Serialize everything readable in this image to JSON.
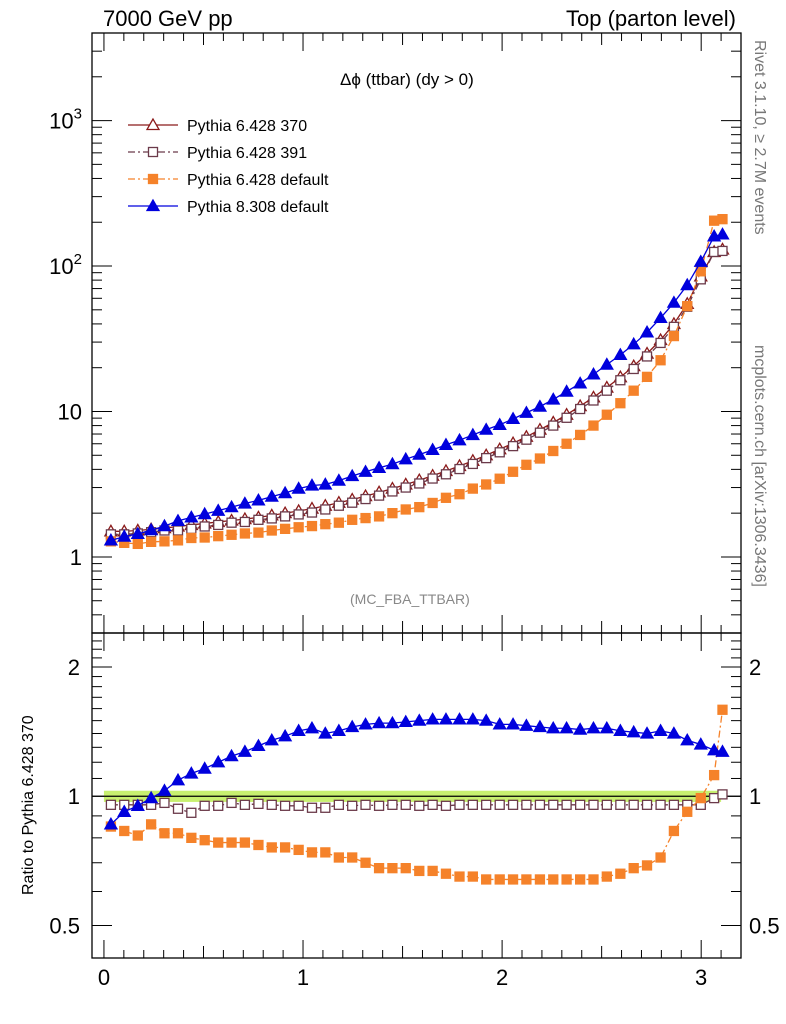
{
  "header": {
    "energy": "7000 GeV pp",
    "process": "Top (parton level)"
  },
  "side_labels": {
    "rivet": "Rivet 3.1.10, ≥ 2.7M events",
    "mcplots": "mcplots.cern.ch [arXiv:1306.3436]"
  },
  "analysis_id": "(MC_FBA_TTBAR)",
  "chart_data": [
    {
      "type": "line",
      "title": "Δϕ (ttbar) (dy > 0)",
      "yscale": "log",
      "xlim": [
        -0.06,
        3.2
      ],
      "ylim": [
        0.3,
        4000
      ],
      "ytick_labels": [
        "1",
        "10",
        "10²",
        "10³"
      ],
      "yticks": [
        1,
        10,
        100,
        1000
      ],
      "legend_position": "top-left",
      "x": [
        0.035,
        0.102,
        0.17,
        0.237,
        0.304,
        0.372,
        0.439,
        0.506,
        0.574,
        0.641,
        0.708,
        0.776,
        0.843,
        0.91,
        0.978,
        1.045,
        1.112,
        1.18,
        1.247,
        1.314,
        1.382,
        1.449,
        1.516,
        1.584,
        1.651,
        1.718,
        1.786,
        1.853,
        1.92,
        1.988,
        2.055,
        2.122,
        2.19,
        2.257,
        2.324,
        2.392,
        2.459,
        2.526,
        2.594,
        2.661,
        2.728,
        2.796,
        2.863,
        2.93,
        2.998,
        3.065,
        3.107
      ],
      "series": [
        {
          "name": "Pythia 6.428 370",
          "color": "#8b1a1a",
          "marker": "open-triangle",
          "line": "solid",
          "values": [
            1.5,
            1.5,
            1.52,
            1.55,
            1.58,
            1.62,
            1.66,
            1.7,
            1.74,
            1.78,
            1.82,
            1.87,
            1.93,
            2.0,
            2.07,
            2.15,
            2.25,
            2.36,
            2.48,
            2.62,
            2.78,
            2.95,
            3.15,
            3.37,
            3.62,
            3.9,
            4.22,
            4.58,
            5.0,
            5.5,
            6.05,
            6.7,
            7.5,
            8.4,
            9.5,
            10.9,
            12.5,
            14.6,
            17.2,
            20.5,
            25.0,
            31.0,
            40.0,
            55.0,
            85.0,
            125.0,
            130.0
          ]
        },
        {
          "name": "Pythia 6.428 391",
          "color": "#6b3a4a",
          "marker": "open-square",
          "line": "dash-dot",
          "values": [
            1.43,
            1.43,
            1.45,
            1.48,
            1.52,
            1.52,
            1.56,
            1.62,
            1.66,
            1.72,
            1.74,
            1.8,
            1.84,
            1.9,
            1.96,
            2.02,
            2.12,
            2.25,
            2.36,
            2.5,
            2.64,
            2.82,
            3.0,
            3.2,
            3.46,
            3.7,
            4.02,
            4.36,
            4.78,
            5.24,
            5.78,
            6.4,
            7.15,
            8.0,
            9.05,
            10.4,
            11.9,
            13.9,
            16.4,
            19.6,
            23.9,
            29.6,
            38.2,
            52.5,
            81.0,
            125.0,
            127.0
          ]
        },
        {
          "name": "Pythia 6.428 default",
          "color": "#f5822a",
          "marker": "filled-square",
          "line": "dash-dot",
          "values": [
            1.28,
            1.25,
            1.23,
            1.27,
            1.28,
            1.3,
            1.35,
            1.36,
            1.39,
            1.42,
            1.45,
            1.47,
            1.52,
            1.56,
            1.6,
            1.63,
            1.68,
            1.72,
            1.8,
            1.85,
            1.9,
            2.0,
            2.12,
            2.2,
            2.35,
            2.55,
            2.7,
            2.95,
            3.15,
            3.45,
            3.85,
            4.3,
            4.75,
            5.35,
            6.0,
            6.9,
            8.0,
            9.5,
            11.4,
            13.9,
            17.3,
            22.5,
            33.0,
            53.0,
            92.0,
            205.0,
            210.0
          ]
        },
        {
          "name": "Pythia 8.308 default",
          "color": "#0000dd",
          "marker": "filled-triangle",
          "line": "solid",
          "values": [
            1.3,
            1.38,
            1.44,
            1.53,
            1.63,
            1.77,
            1.87,
            1.97,
            2.08,
            2.2,
            2.33,
            2.45,
            2.6,
            2.75,
            2.95,
            3.1,
            3.15,
            3.35,
            3.6,
            3.85,
            4.1,
            4.35,
            4.7,
            5.05,
            5.45,
            5.9,
            6.35,
            6.9,
            7.5,
            8.1,
            8.9,
            9.8,
            10.8,
            12.1,
            13.7,
            15.6,
            18.0,
            21.0,
            24.5,
            29.0,
            35.0,
            44.0,
            56.0,
            74.0,
            107.0,
            160.0,
            165.0
          ]
        }
      ]
    },
    {
      "type": "line",
      "title": "",
      "ylabel": "Ratio to Pythia 6.428 370",
      "xlabel": "",
      "yscale": "log",
      "xlim": [
        -0.06,
        3.2
      ],
      "ylim": [
        0.42,
        2.4
      ],
      "xticks": [
        0,
        1,
        2,
        3
      ],
      "xtick_labels": [
        "0",
        "1",
        "2",
        "3"
      ],
      "yticks": [
        0.5,
        1,
        2
      ],
      "ytick_labels": [
        "0.5",
        "1",
        "2"
      ],
      "reference_band": [
        0.97,
        1.03
      ],
      "x": [
        0.035,
        0.102,
        0.17,
        0.237,
        0.304,
        0.372,
        0.439,
        0.506,
        0.574,
        0.641,
        0.708,
        0.776,
        0.843,
        0.91,
        0.978,
        1.045,
        1.112,
        1.18,
        1.247,
        1.314,
        1.382,
        1.449,
        1.516,
        1.584,
        1.651,
        1.718,
        1.786,
        1.853,
        1.92,
        1.988,
        2.055,
        2.122,
        2.19,
        2.257,
        2.324,
        2.392,
        2.459,
        2.526,
        2.594,
        2.661,
        2.728,
        2.796,
        2.863,
        2.93,
        2.998,
        3.065,
        3.107
      ],
      "series": [
        {
          "name": "Pythia 6.428 391",
          "color": "#6b3a4a",
          "marker": "open-square",
          "line": "dash-dot",
          "values": [
            0.955,
            0.955,
            0.955,
            0.955,
            0.965,
            0.935,
            0.915,
            0.95,
            0.95,
            0.965,
            0.955,
            0.96,
            0.955,
            0.95,
            0.95,
            0.94,
            0.94,
            0.955,
            0.95,
            0.955,
            0.95,
            0.955,
            0.955,
            0.95,
            0.955,
            0.95,
            0.955,
            0.955,
            0.955,
            0.955,
            0.955,
            0.955,
            0.955,
            0.955,
            0.955,
            0.955,
            0.955,
            0.955,
            0.955,
            0.955,
            0.955,
            0.955,
            0.955,
            0.955,
            0.955,
            0.99,
            1.01
          ]
        },
        {
          "name": "Pythia 6.428 default",
          "color": "#f5822a",
          "marker": "filled-square",
          "line": "dash-dot",
          "values": [
            0.85,
            0.83,
            0.81,
            0.86,
            0.82,
            0.82,
            0.8,
            0.79,
            0.78,
            0.78,
            0.78,
            0.77,
            0.76,
            0.76,
            0.75,
            0.74,
            0.74,
            0.72,
            0.72,
            0.7,
            0.68,
            0.68,
            0.68,
            0.67,
            0.67,
            0.66,
            0.65,
            0.65,
            0.64,
            0.64,
            0.64,
            0.64,
            0.64,
            0.64,
            0.64,
            0.64,
            0.64,
            0.65,
            0.66,
            0.68,
            0.69,
            0.72,
            0.83,
            0.92,
            0.99,
            1.12,
            1.59
          ]
        },
        {
          "name": "Pythia 8.308 default",
          "color": "#0000dd",
          "marker": "filled-triangle",
          "line": "solid",
          "values": [
            0.86,
            0.92,
            0.95,
            0.99,
            1.03,
            1.09,
            1.13,
            1.16,
            1.2,
            1.24,
            1.27,
            1.31,
            1.35,
            1.38,
            1.42,
            1.44,
            1.4,
            1.42,
            1.45,
            1.47,
            1.48,
            1.48,
            1.49,
            1.5,
            1.51,
            1.51,
            1.51,
            1.51,
            1.5,
            1.47,
            1.47,
            1.46,
            1.45,
            1.44,
            1.44,
            1.43,
            1.44,
            1.44,
            1.42,
            1.41,
            1.4,
            1.42,
            1.4,
            1.35,
            1.32,
            1.28,
            1.27
          ]
        }
      ]
    }
  ]
}
